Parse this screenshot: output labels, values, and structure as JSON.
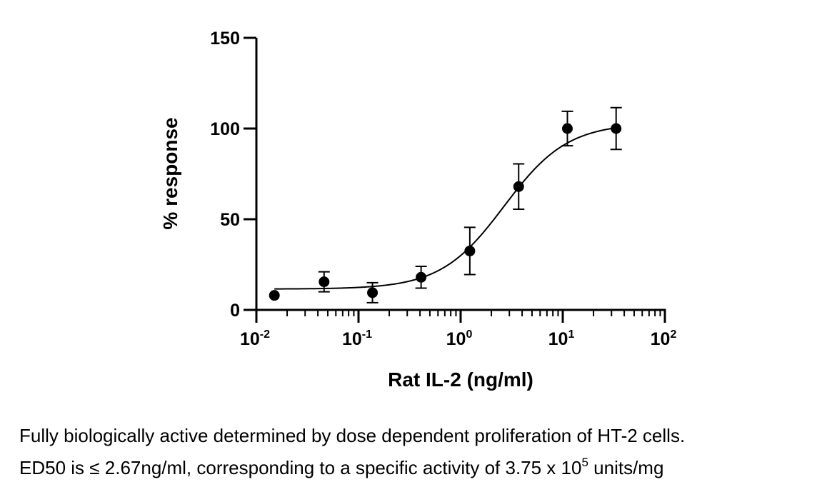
{
  "chart_data": {
    "type": "scatter",
    "title": "",
    "xlabel": "Rat IL-2 (ng/ml)",
    "ylabel": "% response",
    "x_scale": "log",
    "xlim": [
      0.01,
      100
    ],
    "ylim": [
      0,
      150
    ],
    "x_ticks": [
      {
        "value": 0.01,
        "base": "10",
        "exp": "-2"
      },
      {
        "value": 0.1,
        "base": "10",
        "exp": "-1"
      },
      {
        "value": 1,
        "base": "10",
        "exp": "0"
      },
      {
        "value": 10,
        "base": "10",
        "exp": "1"
      },
      {
        "value": 100,
        "base": "10",
        "exp": "2"
      }
    ],
    "y_ticks": [
      "0",
      "50",
      "100",
      "150"
    ],
    "grid": false,
    "series": [
      {
        "points": [
          {
            "x": 0.015,
            "y": 8,
            "err": 0
          },
          {
            "x": 0.046,
            "y": 15.5,
            "err": 5.5
          },
          {
            "x": 0.137,
            "y": 9.5,
            "err": 5.5
          },
          {
            "x": 0.41,
            "y": 18,
            "err": 6
          },
          {
            "x": 1.23,
            "y": 32.5,
            "err": 13
          },
          {
            "x": 3.7,
            "y": 68,
            "err": 12.5
          },
          {
            "x": 11.1,
            "y": 100,
            "err": 9.5
          },
          {
            "x": 33.3,
            "y": 100,
            "err": 11.5
          }
        ]
      }
    ],
    "fit_curve": {
      "type": "4PL",
      "bottom": 11.5,
      "top": 103,
      "ec50": 2.67,
      "hill": 1.4,
      "x_range": [
        0.015,
        33.3
      ]
    }
  },
  "caption": {
    "line1": "Fully biologically active determined by dose dependent proliferation of HT-2 cells.",
    "line2_prefix": "ED50 is ≤ 2.67ng/ml, corresponding to a specific activity of 3.75 x 10",
    "line2_exp": "5",
    "line2_suffix": " units/mg"
  }
}
